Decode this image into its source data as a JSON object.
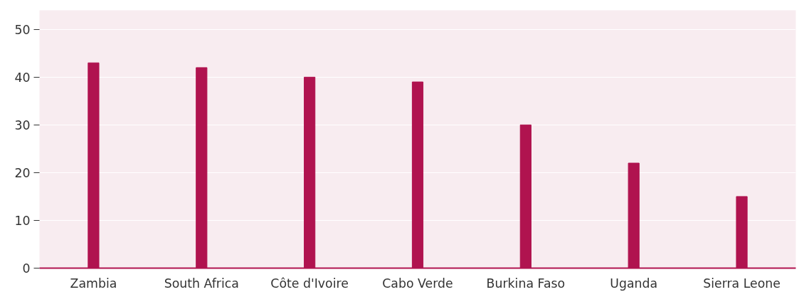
{
  "chart_data": {
    "type": "bar",
    "categories": [
      "Zambia",
      "South Africa",
      "Côte d'Ivoire",
      "Cabo Verde",
      "Burkina Faso",
      "Uganda",
      "Sierra Leone"
    ],
    "values": [
      43,
      42,
      40,
      39,
      30,
      22,
      15
    ],
    "color": "#b0134f",
    "ylim": [
      0,
      54
    ],
    "yticks": [
      0,
      10,
      20,
      30,
      40,
      50
    ],
    "grid": "y"
  }
}
